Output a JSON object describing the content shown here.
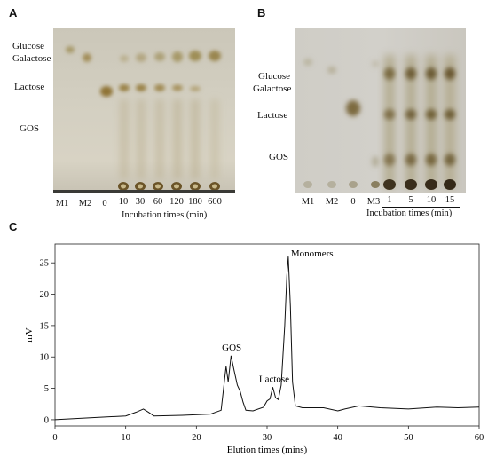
{
  "panels": {
    "a": {
      "letter": "A",
      "species": [
        "Glucose",
        "Galactose",
        "Lactose",
        "GOS"
      ],
      "markers": [
        "M1",
        "M2",
        "0"
      ],
      "times": [
        "10",
        "30",
        "60",
        "120",
        "180",
        "600"
      ],
      "axis_caption": "Incubation times (min)"
    },
    "b": {
      "letter": "B",
      "species": [
        "Glucose",
        "Galactose",
        "Lactose",
        "GOS"
      ],
      "markers": [
        "M1",
        "M2",
        "0",
        "M3"
      ],
      "times": [
        "1",
        "5",
        "10",
        "15"
      ],
      "axis_caption": "Incubation times (min)"
    },
    "c": {
      "letter": "C"
    }
  },
  "chart_data": {
    "type": "line",
    "title": "",
    "xlabel": "Elution times (mins)",
    "ylabel": "mV",
    "xlim": [
      0,
      60
    ],
    "ylim": [
      -1,
      28
    ],
    "xticks": [
      0,
      10,
      20,
      30,
      40,
      50,
      60
    ],
    "yticks": [
      0,
      5,
      10,
      15,
      20,
      25
    ],
    "grid": false,
    "series": [
      {
        "x": [
          0,
          5,
          10,
          11.5,
          12.5,
          13.2,
          14,
          18,
          22,
          23.5,
          24.2,
          24.5,
          24.9,
          25.3,
          25.8,
          26.2,
          26.6,
          27,
          28,
          29.5,
          30,
          30.4,
          30.8,
          31.2,
          31.6,
          32,
          32.5,
          32.8,
          33,
          33.3,
          33.6,
          34,
          35,
          38,
          40,
          41,
          43,
          46,
          50,
          54,
          57,
          60
        ],
        "y": [
          0,
          0.3,
          0.6,
          1.2,
          1.7,
          1.2,
          0.6,
          0.7,
          0.9,
          1.5,
          8.5,
          6.0,
          10.2,
          8.0,
          5.5,
          4.5,
          2.8,
          1.5,
          1.4,
          2.0,
          3.0,
          3.3,
          5.2,
          3.5,
          3.2,
          5.5,
          15.0,
          23.0,
          26.0,
          18.0,
          6.0,
          2.2,
          1.9,
          1.9,
          1.4,
          1.7,
          2.2,
          1.9,
          1.7,
          2.0,
          1.9,
          2.0
        ]
      }
    ],
    "annotations": [
      {
        "text": "GOS",
        "x": 25,
        "y": 11
      },
      {
        "text": "Lactose",
        "x": 31,
        "y": 6
      },
      {
        "text": "Monomers",
        "x": 33,
        "y": 26
      }
    ]
  }
}
